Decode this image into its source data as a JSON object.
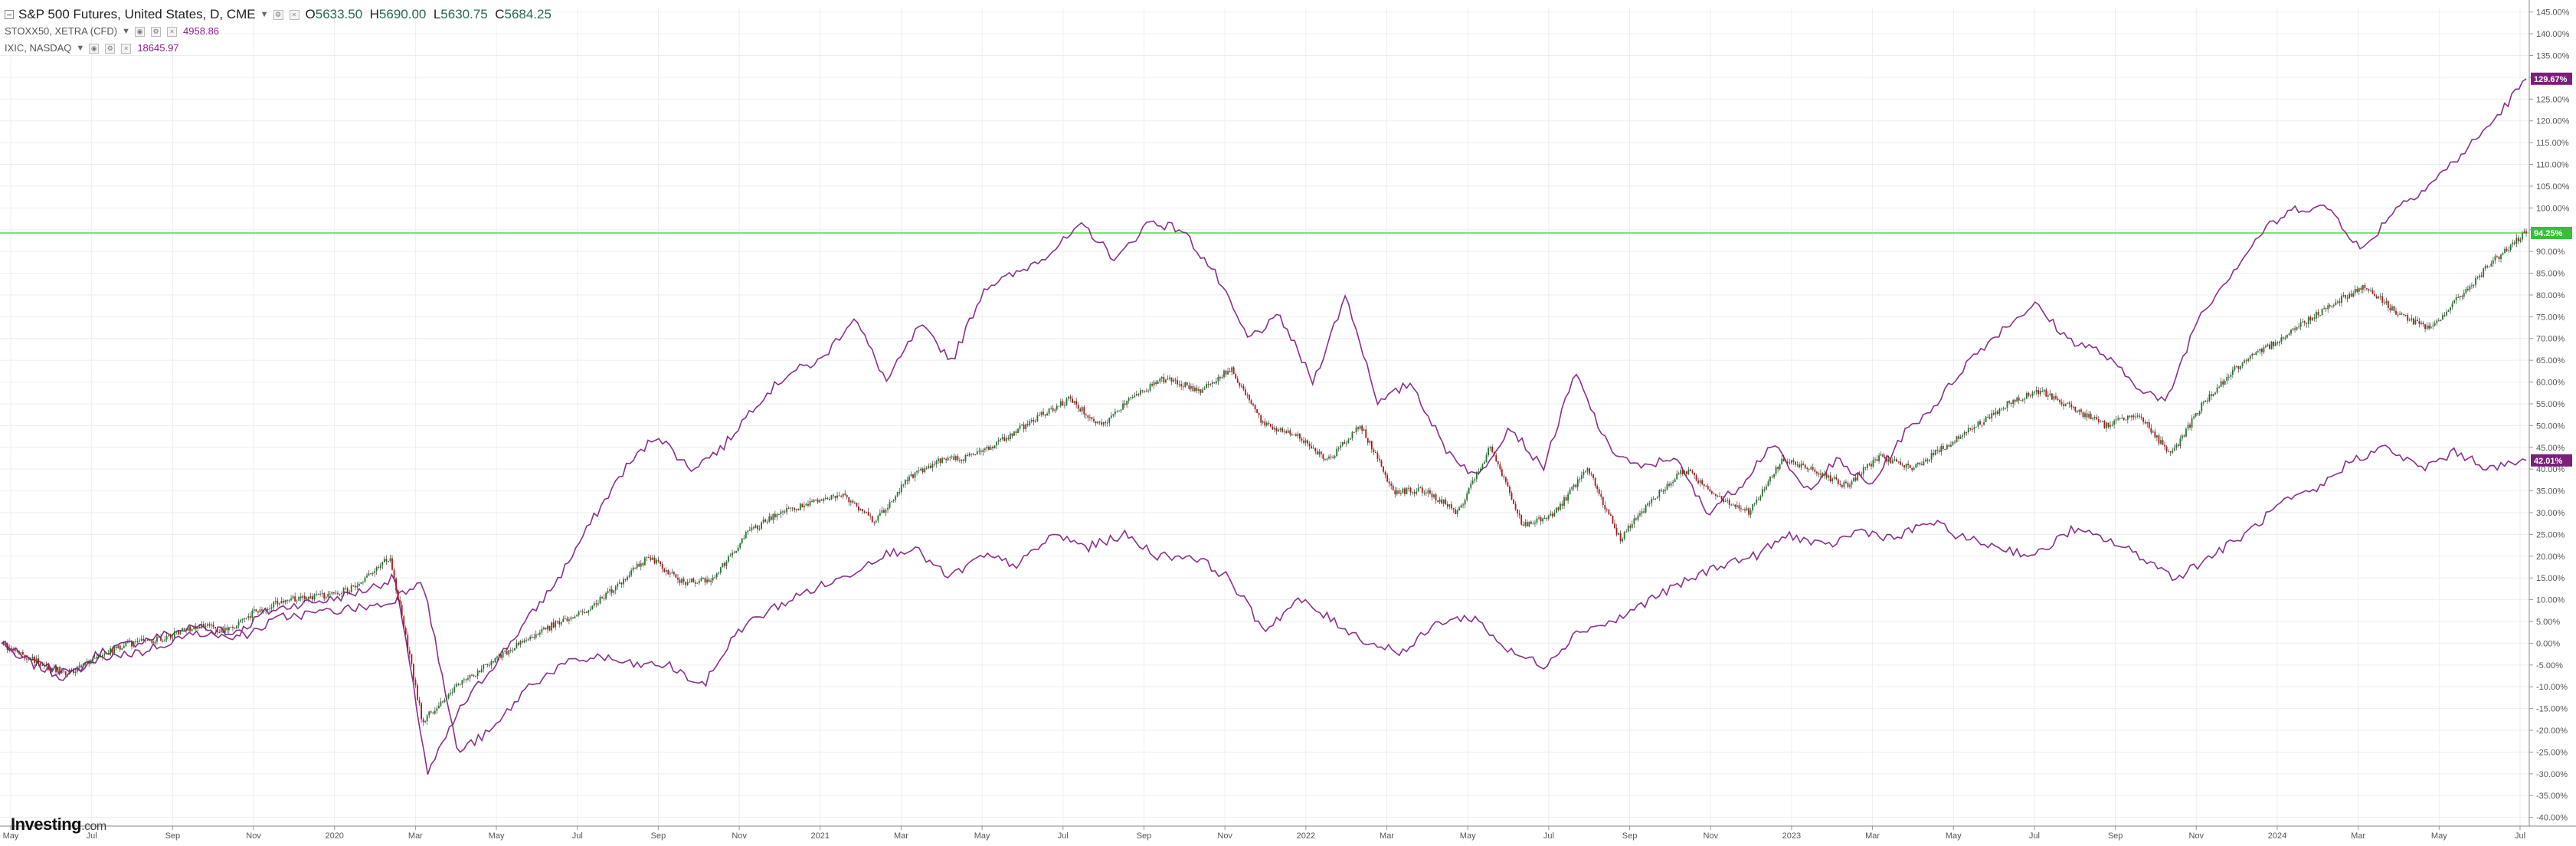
{
  "legend": {
    "main": {
      "title": "S&P 500 Futures, United States, D, CME",
      "open_label": "O",
      "open": "5633.50",
      "high_label": "H",
      "high": "5690.00",
      "low_label": "L",
      "low": "5630.75",
      "close_label": "C",
      "close": "5684.25"
    },
    "overlay1": {
      "title": "STOXX50, XETRA (CFD)",
      "value": "4958.86"
    },
    "overlay2": {
      "title": "IXIC, NASDAQ",
      "value": "18645.97"
    }
  },
  "brand": {
    "logo_text": "Investing",
    "logo_suffix": ".com"
  },
  "colors": {
    "purple": "#8b2f8b",
    "green_up": "#1b7a2a",
    "red_down": "#b3151b",
    "hline": "#7fe07f",
    "grid": "#eeeeee",
    "label_green": "#33c233",
    "label_purple": "#7a1f7a"
  },
  "chart_data": {
    "type": "line",
    "y_unit": "%",
    "ylim": [
      -42,
      146
    ],
    "y_ticks": [
      "145.00%",
      "140.00%",
      "135.00%",
      "130.00%",
      "125.00%",
      "120.00%",
      "115.00%",
      "110.00%",
      "105.00%",
      "100.00%",
      "95.00%",
      "90.00%",
      "85.00%",
      "80.00%",
      "75.00%",
      "70.00%",
      "65.00%",
      "60.00%",
      "55.00%",
      "50.00%",
      "45.00%",
      "40.00%",
      "35.00%",
      "30.00%",
      "25.00%",
      "20.00%",
      "15.00%",
      "10.00%",
      "5.00%",
      "0.00%",
      "-5.00%",
      "-10.00%",
      "-15.00%",
      "-20.00%",
      "-25.00%",
      "-30.00%",
      "-35.00%",
      "-40.00%"
    ],
    "x_ticks": [
      "May",
      "Jul",
      "Sep",
      "Nov",
      "2020",
      "Mar",
      "May",
      "Jul",
      "Sep",
      "Nov",
      "2021",
      "Mar",
      "May",
      "Jul",
      "Sep",
      "Nov",
      "2022",
      "Mar",
      "May",
      "Jul",
      "Sep",
      "Nov",
      "2023",
      "Mar",
      "May",
      "Jul",
      "Sep",
      "Nov",
      "2024",
      "Mar",
      "May",
      "Jul"
    ],
    "current_labels": [
      {
        "series": "IXIC, NASDAQ",
        "text": "129.67%",
        "value": 129.67
      },
      {
        "series": "S&P 500 Futures",
        "text": "94.25%",
        "value": 94.25
      },
      {
        "series": "STOXX50",
        "text": "42.01%",
        "value": 42.01
      }
    ],
    "horizontal_line": 94.25,
    "series": [
      {
        "name": "S&P 500 Futures",
        "style": "candles",
        "values": [
          0,
          -4,
          -7,
          -3,
          0,
          1,
          4,
          3,
          8,
          10,
          11,
          13,
          20,
          -18,
          -10,
          -5,
          0,
          4,
          7,
          13,
          20,
          14,
          15,
          25,
          30,
          32,
          34,
          28,
          38,
          42,
          43,
          47,
          52,
          56,
          50,
          57,
          61,
          58,
          63,
          50,
          48,
          42,
          50,
          35,
          35,
          30,
          45,
          27,
          30,
          40,
          24,
          33,
          40,
          34,
          30,
          42,
          40,
          36,
          43,
          40,
          45,
          50,
          55,
          58,
          54,
          50,
          53,
          43,
          55,
          63,
          68,
          73,
          78,
          82,
          76,
          72,
          80,
          88,
          94.25
        ]
      },
      {
        "name": "IXIC, NASDAQ",
        "style": "line",
        "values": [
          0,
          -5,
          -8,
          -2,
          0,
          2,
          4,
          1,
          7,
          9,
          10,
          12,
          15,
          -30,
          -15,
          -5,
          5,
          15,
          28,
          40,
          48,
          40,
          45,
          55,
          62,
          65,
          75,
          60,
          73,
          65,
          82,
          85,
          90,
          96,
          88,
          97,
          95,
          85,
          70,
          75,
          60,
          80,
          55,
          60,
          45,
          38,
          50,
          40,
          62,
          45,
          40,
          43,
          30,
          36,
          46,
          35,
          42,
          36,
          48,
          55,
          65,
          72,
          78,
          70,
          67,
          60,
          55,
          75,
          85,
          95,
          100,
          100,
          90,
          100,
          105,
          112,
          120,
          129.67
        ]
      },
      {
        "name": "STOXX50",
        "style": "line",
        "values": [
          0,
          -5,
          -7,
          -3,
          -2,
          1,
          3,
          2,
          6,
          7,
          8,
          9,
          15,
          -25,
          -20,
          -10,
          -5,
          -3,
          -5,
          -5,
          -10,
          3,
          8,
          12,
          15,
          20,
          22,
          15,
          20,
          18,
          25,
          22,
          25,
          20,
          20,
          15,
          3,
          10,
          5,
          0,
          -2,
          5,
          6,
          -2,
          -5,
          3,
          5,
          10,
          14,
          18,
          20,
          25,
          22,
          26,
          24,
          28,
          24,
          22,
          20,
          26,
          24,
          20,
          15,
          20,
          25,
          32,
          35,
          42,
          45,
          40,
          44,
          40,
          42.01
        ]
      }
    ]
  }
}
